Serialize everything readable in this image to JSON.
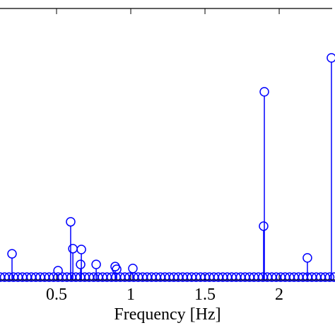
{
  "chart_data": {
    "type": "stem",
    "x_label": "Frequency [Hz]",
    "xlim": [
      0.119,
      2.376
    ],
    "ylim": [
      0,
      1
    ],
    "xticks": [
      0.5,
      1,
      1.5,
      2
    ],
    "series": [
      {
        "color": "#0000ff",
        "x": [
          0.12,
          0.15,
          0.18,
          0.21,
          0.24,
          0.27,
          0.3,
          0.33,
          0.36,
          0.39,
          0.42,
          0.45,
          0.48,
          0.51,
          0.54,
          0.57,
          0.6,
          0.63,
          0.66,
          0.69,
          0.72,
          0.75,
          0.78,
          0.81,
          0.84,
          0.87,
          0.9,
          0.93,
          0.96,
          0.99,
          1.02,
          1.05,
          1.08,
          1.11,
          1.14,
          1.17,
          1.2,
          1.23,
          1.26,
          1.29,
          1.32,
          1.35,
          1.38,
          1.41,
          1.44,
          1.47,
          1.5,
          1.53,
          1.56,
          1.59,
          1.62,
          1.65,
          1.68,
          1.71,
          1.74,
          1.77,
          1.8,
          1.83,
          1.86,
          1.89,
          1.92,
          1.95,
          1.98,
          2.01,
          2.04,
          2.07,
          2.1,
          2.13,
          2.16,
          2.19,
          2.22,
          2.25,
          2.28,
          2.31,
          2.34,
          2.37,
          0.2,
          0.51,
          0.595,
          0.61,
          0.662,
          0.667,
          0.767,
          0.895,
          0.905,
          1.014,
          1.9,
          1.895,
          2.19,
          2.352
        ],
        "values": [
          0.01,
          0.01,
          0.01,
          0.01,
          0.01,
          0.01,
          0.01,
          0.01,
          0.01,
          0.01,
          0.01,
          0.01,
          0.01,
          0.01,
          0.01,
          0.01,
          0.01,
          0.01,
          0.01,
          0.01,
          0.01,
          0.01,
          0.01,
          0.01,
          0.01,
          0.01,
          0.01,
          0.01,
          0.01,
          0.01,
          0.01,
          0.01,
          0.01,
          0.01,
          0.01,
          0.01,
          0.01,
          0.01,
          0.01,
          0.01,
          0.01,
          0.01,
          0.01,
          0.01,
          0.01,
          0.01,
          0.01,
          0.01,
          0.01,
          0.01,
          0.01,
          0.01,
          0.01,
          0.01,
          0.01,
          0.01,
          0.01,
          0.01,
          0.01,
          0.01,
          0.01,
          0.01,
          0.01,
          0.01,
          0.01,
          0.01,
          0.01,
          0.01,
          0.01,
          0.01,
          0.01,
          0.01,
          0.01,
          0.01,
          0.01,
          0.01,
          0.096,
          0.034,
          0.214,
          0.115,
          0.057,
          0.112,
          0.057,
          0.049,
          0.039,
          0.042,
          0.693,
          0.198,
          0.081,
          0.818
        ]
      }
    ]
  }
}
